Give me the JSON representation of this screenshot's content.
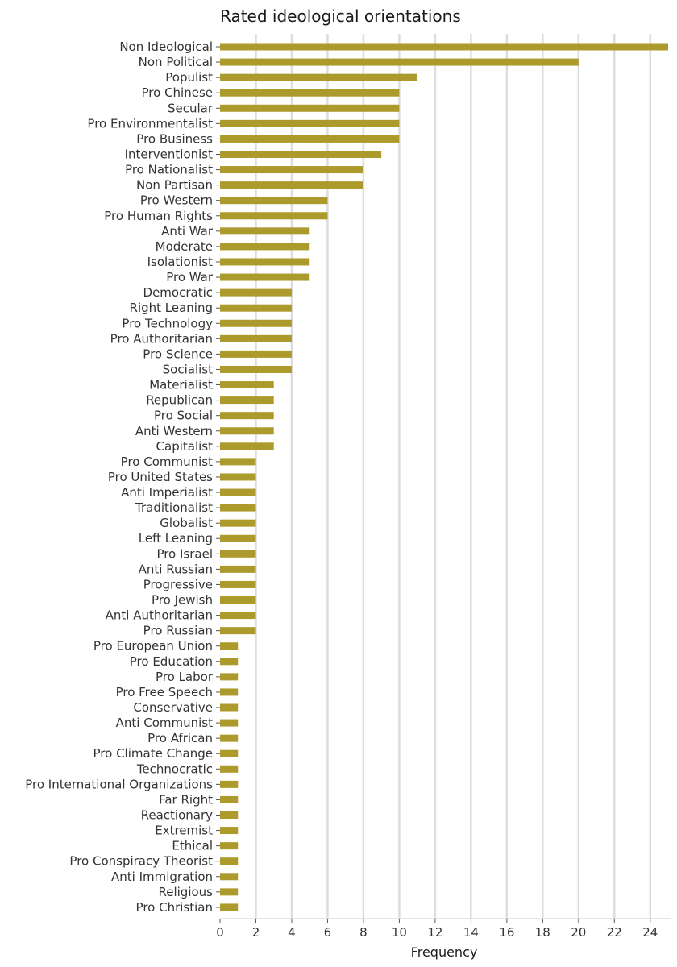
{
  "chart_data": {
    "type": "bar",
    "orientation": "horizontal",
    "title": "Rated ideological orientations",
    "xlabel": "Frequency",
    "ylabel": "",
    "xlim": [
      0,
      25
    ],
    "xticks": [
      0,
      2,
      4,
      6,
      8,
      10,
      12,
      14,
      16,
      18,
      20,
      22,
      24
    ],
    "grid": true,
    "bar_color": "#ad9a2c",
    "categories": [
      "Non Ideological",
      "Non Political",
      "Populist",
      "Pro Chinese",
      "Secular",
      "Pro Environmentalist",
      "Pro Business",
      "Interventionist",
      "Pro Nationalist",
      "Non Partisan",
      "Pro Western",
      "Pro Human Rights",
      "Anti War",
      "Moderate",
      "Isolationist",
      "Pro War",
      "Democratic",
      "Right Leaning",
      "Pro Technology",
      "Pro Authoritarian",
      "Pro Science",
      "Socialist",
      "Materialist",
      "Republican",
      "Pro Social",
      "Anti Western",
      "Capitalist",
      "Pro Communist",
      "Pro United States",
      "Anti Imperialist",
      "Traditionalist",
      "Globalist",
      "Left Leaning",
      "Pro Israel",
      "Anti Russian",
      "Progressive",
      "Pro Jewish",
      "Anti Authoritarian",
      "Pro Russian",
      "Pro European Union",
      "Pro Education",
      "Pro Labor",
      "Pro Free Speech",
      "Conservative",
      "Anti Communist",
      "Pro African",
      "Pro Climate Change",
      "Technocratic",
      "Pro International Organizations",
      "Far Right",
      "Reactionary",
      "Extremist",
      "Ethical",
      "Pro Conspiracy Theorist",
      "Anti Immigration",
      "Religious",
      "Pro Christian"
    ],
    "values": [
      25,
      20,
      11,
      10,
      10,
      10,
      10,
      9,
      8,
      8,
      6,
      6,
      5,
      5,
      5,
      5,
      4,
      4,
      4,
      4,
      4,
      4,
      3,
      3,
      3,
      3,
      3,
      2,
      2,
      2,
      2,
      2,
      2,
      2,
      2,
      2,
      2,
      2,
      2,
      1,
      1,
      1,
      1,
      1,
      1,
      1,
      1,
      1,
      1,
      1,
      1,
      1,
      1,
      1,
      1,
      1,
      1
    ]
  }
}
